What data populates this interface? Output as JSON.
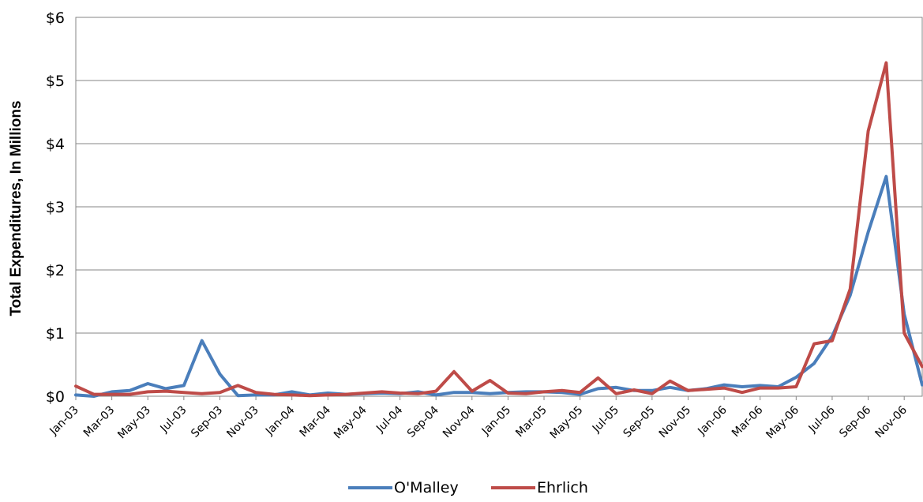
{
  "chart_data": {
    "type": "line",
    "title": "",
    "xlabel": "",
    "ylabel": "Total Expenditures, In Millions",
    "ylim": [
      0,
      6
    ],
    "yticks": [
      "$0",
      "$1",
      "$2",
      "$3",
      "$4",
      "$5",
      "$6"
    ],
    "grid": true,
    "legend_position": "bottom",
    "x_tick_labels": [
      "Jan-03",
      "Mar-03",
      "May-03",
      "Jul-03",
      "Sep-03",
      "Nov-03",
      "Jan-04",
      "Mar-04",
      "May-04",
      "Jul-04",
      "Sep-04",
      "Nov-04",
      "Jan-05",
      "Mar-05",
      "May-05",
      "Jul-05",
      "Sep-05",
      "Nov-05",
      "Jan-06",
      "Mar-06",
      "May-06",
      "Jul-06",
      "Sep-06",
      "Nov-06"
    ],
    "x": [
      "Jan-03",
      "Feb-03",
      "Mar-03",
      "Apr-03",
      "May-03",
      "Jun-03",
      "Jul-03",
      "Aug-03",
      "Sep-03",
      "Oct-03",
      "Nov-03",
      "Dec-03",
      "Jan-04",
      "Feb-04",
      "Mar-04",
      "Apr-04",
      "May-04",
      "Jun-04",
      "Jul-04",
      "Aug-04",
      "Sep-04",
      "Oct-04",
      "Nov-04",
      "Dec-04",
      "Jan-05",
      "Feb-05",
      "Mar-05",
      "Apr-05",
      "May-05",
      "Jun-05",
      "Jul-05",
      "Aug-05",
      "Sep-05",
      "Oct-05",
      "Nov-05",
      "Dec-05",
      "Jan-06",
      "Feb-06",
      "Mar-06",
      "Apr-06",
      "May-06",
      "Jun-06",
      "Jul-06",
      "Aug-06",
      "Sep-06",
      "Oct-06",
      "Nov-06",
      "Dec-06"
    ],
    "series": [
      {
        "name": "O'Malley",
        "color": "#4A7EBB",
        "values": [
          0.02,
          0.0,
          0.07,
          0.09,
          0.2,
          0.12,
          0.17,
          0.88,
          0.35,
          0.01,
          0.02,
          0.02,
          0.07,
          0.02,
          0.05,
          0.03,
          0.04,
          0.05,
          0.04,
          0.07,
          0.02,
          0.06,
          0.06,
          0.04,
          0.06,
          0.07,
          0.07,
          0.06,
          0.03,
          0.12,
          0.14,
          0.09,
          0.09,
          0.14,
          0.09,
          0.12,
          0.18,
          0.15,
          0.17,
          0.15,
          0.3,
          0.52,
          0.95,
          1.6,
          2.6,
          3.48,
          1.3,
          0.18
        ]
      },
      {
        "name": "Ehrlich",
        "color": "#BE4B48",
        "values": [
          0.16,
          0.03,
          0.03,
          0.03,
          0.07,
          0.08,
          0.06,
          0.04,
          0.06,
          0.17,
          0.06,
          0.03,
          0.02,
          0.01,
          0.02,
          0.03,
          0.05,
          0.07,
          0.05,
          0.04,
          0.08,
          0.39,
          0.08,
          0.25,
          0.05,
          0.04,
          0.07,
          0.09,
          0.06,
          0.29,
          0.04,
          0.1,
          0.04,
          0.24,
          0.09,
          0.11,
          0.13,
          0.06,
          0.13,
          0.13,
          0.15,
          0.83,
          0.88,
          1.7,
          4.2,
          5.28,
          1.0,
          0.47
        ]
      }
    ]
  }
}
